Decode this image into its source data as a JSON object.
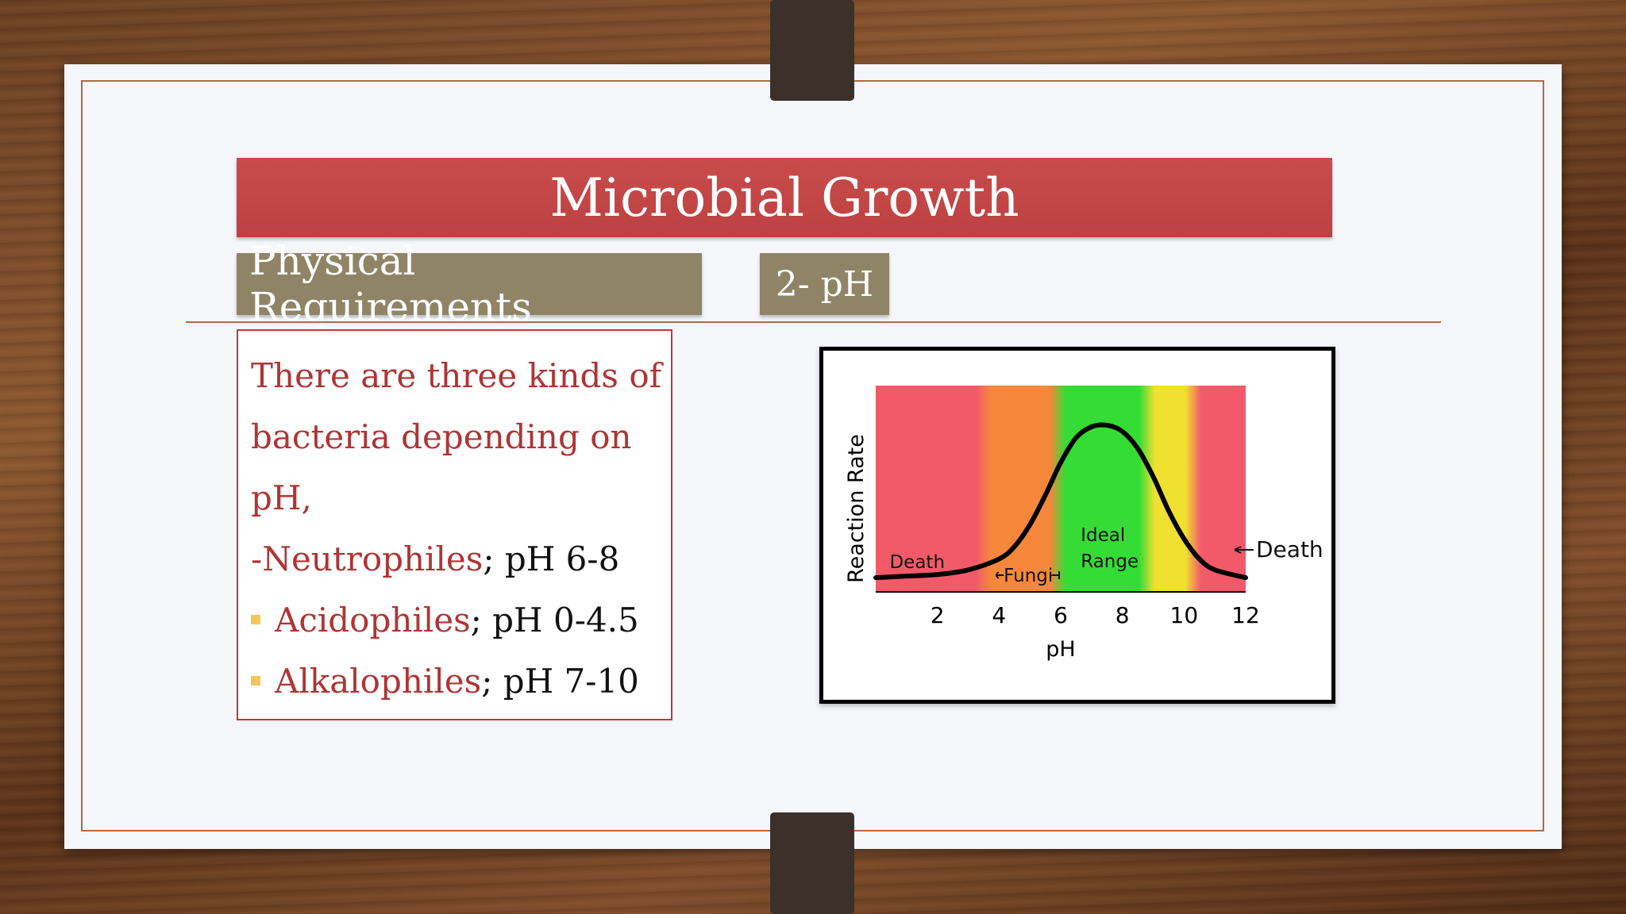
{
  "slide": {
    "title": "Microbial Growth",
    "subtitle": "Physical Requirements",
    "section": "2-  pH"
  },
  "body": {
    "intro_lines": [
      "There are three kinds of",
      "bacteria depending on",
      "pH,"
    ],
    "items": [
      {
        "prefix": "-",
        "name": "Neutrophiles",
        "range": "; pH 6-8",
        "bullet": false
      },
      {
        "prefix": "",
        "name": "Acidophiles",
        "range": "; pH 0-4.5",
        "bullet": true
      },
      {
        "prefix": "",
        "name": "Alkalophiles",
        "range": "; pH 7-10",
        "bullet": true
      }
    ]
  },
  "chart_data": {
    "type": "line",
    "xlabel": "pH",
    "ylabel": "Reaction Rate",
    "xlim": [
      0,
      12
    ],
    "x_ticks": [
      2,
      4,
      6,
      8,
      10,
      12
    ],
    "x": [
      0,
      1,
      2,
      3,
      4,
      4.5,
      5,
      5.5,
      6,
      6.5,
      7,
      7.5,
      8,
      8.5,
      9,
      9.5,
      10,
      10.5,
      11,
      12
    ],
    "y": [
      0.02,
      0.03,
      0.04,
      0.07,
      0.14,
      0.22,
      0.36,
      0.55,
      0.76,
      0.92,
      0.99,
      1.0,
      0.96,
      0.85,
      0.67,
      0.45,
      0.27,
      0.14,
      0.07,
      0.02
    ],
    "annotations": [
      {
        "text": "Death"
      },
      {
        "text": "Fungi"
      },
      {
        "text": "Ideal"
      },
      {
        "text": "Range"
      },
      {
        "text": "Death"
      }
    ],
    "bands": [
      {
        "from": 0,
        "to": 3.5,
        "color": "#f25a6a"
      },
      {
        "from": 3.5,
        "to": 5.9,
        "color": "#f7873a"
      },
      {
        "from": 5.9,
        "to": 8.8,
        "color": "#35dc35"
      },
      {
        "from": 8.8,
        "to": 10.3,
        "color": "#f0e030"
      },
      {
        "from": 10.3,
        "to": 12,
        "color": "#f25a6a"
      }
    ],
    "grid": false,
    "legend": "none"
  }
}
